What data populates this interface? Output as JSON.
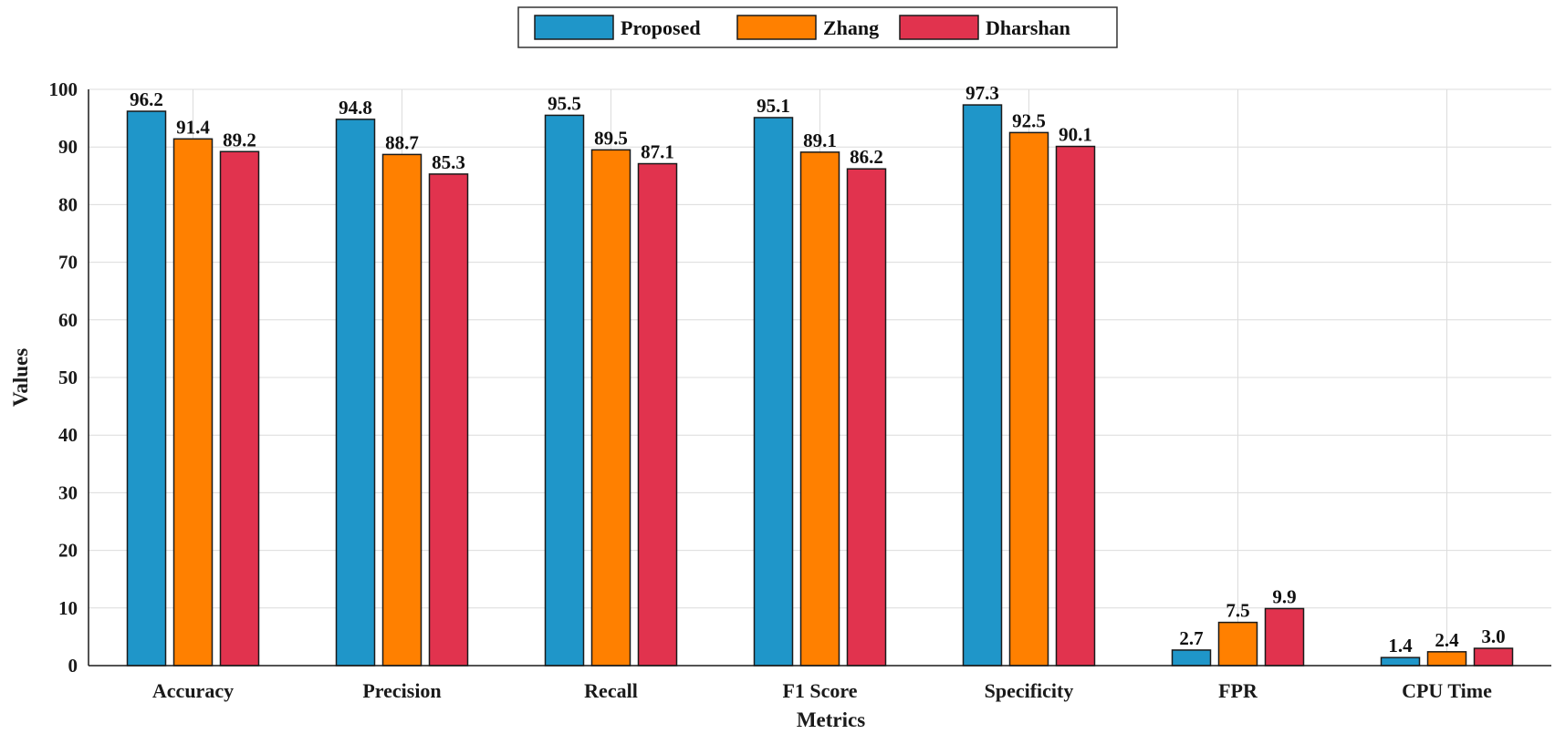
{
  "chart_data": {
    "type": "bar",
    "categories": [
      "Accuracy",
      "Precision",
      "Recall",
      "F1 Score",
      "Specificity",
      "FPR",
      "CPU Time"
    ],
    "series": [
      {
        "name": "Proposed",
        "color": "#1f96c9",
        "values": [
          96.2,
          94.8,
          95.5,
          95.1,
          97.3,
          2.7,
          1.4
        ],
        "labels": [
          "96.2",
          "94.8",
          "95.5",
          "95.1",
          "97.3",
          "2.7",
          "1.4"
        ]
      },
      {
        "name": "Zhang",
        "color": "#ff8000",
        "values": [
          91.4,
          88.7,
          89.5,
          89.1,
          92.5,
          7.5,
          2.4
        ],
        "labels": [
          "91.4",
          "88.7",
          "89.5",
          "89.1",
          "92.5",
          "7.5",
          "2.4"
        ]
      },
      {
        "name": "Dharshan",
        "color": "#e1334e",
        "values": [
          89.2,
          85.3,
          87.1,
          86.2,
          90.1,
          9.9,
          3.0
        ],
        "labels": [
          "89.2",
          "85.3",
          "87.1",
          "86.2",
          "90.1",
          "9.9",
          "3.0"
        ]
      }
    ],
    "xlabel": "Metrics",
    "ylabel": "Values",
    "ylim": [
      0,
      100
    ],
    "yticks": [
      0,
      10,
      20,
      30,
      40,
      50,
      60,
      70,
      80,
      90,
      100
    ],
    "ytick_labels": [
      "0",
      "10",
      "20",
      "30",
      "40",
      "50",
      "60",
      "70",
      "80",
      "90",
      "100"
    ],
    "grid": true,
    "legend_position": "top-center"
  }
}
